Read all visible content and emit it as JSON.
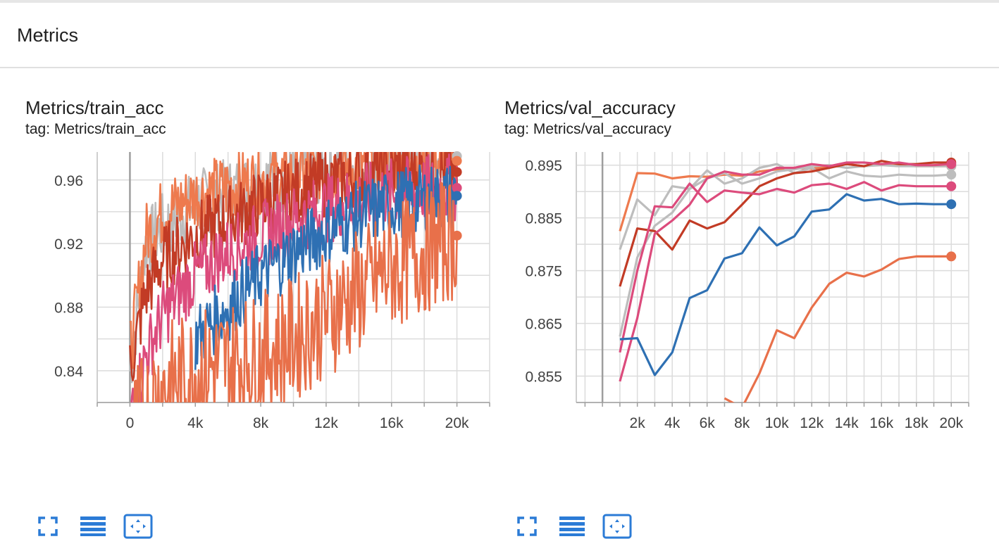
{
  "section": {
    "title": "Metrics"
  },
  "colors": {
    "grid": "#dcdcdc",
    "accent": "#1976d2",
    "series": {
      "gray": "#bdbdbd",
      "orange": "#ee7a4e",
      "red": "#c23b25",
      "pink": "#dc4b7c",
      "blue": "#2e70b3",
      "dark_orange": "#e8704a"
    }
  },
  "charts": [
    {
      "title": "Metrics/train_acc",
      "tag": "tag: Metrics/train_acc",
      "toolbar": [
        {
          "icon": "fullscreen-icon"
        },
        {
          "icon": "data-lines-icon"
        },
        {
          "icon": "fit-domain-icon"
        }
      ]
    },
    {
      "title": "Metrics/val_accuracy",
      "tag": "tag: Metrics/val_accuracy",
      "toolbar": [
        {
          "icon": "fullscreen-icon"
        },
        {
          "icon": "data-lines-icon"
        },
        {
          "icon": "fit-domain-icon"
        }
      ]
    }
  ],
  "chart_data": [
    {
      "type": "line",
      "title": "Metrics/train_acc",
      "subtitle": "tag: Metrics/train_acc",
      "xlim": [
        -2000,
        22000
      ],
      "ylim": [
        0.82,
        0.9776
      ],
      "x_ticks": [
        0,
        4000,
        8000,
        12000,
        16000,
        20000
      ],
      "x_tick_labels": [
        "0",
        "4k",
        "8k",
        "12k",
        "16k",
        "20k"
      ],
      "y_ticks": [
        0.84,
        0.88,
        0.92,
        0.96
      ],
      "y_tick_labels": [
        "0.84",
        "0.88",
        "0.92",
        "0.96"
      ],
      "grid": true,
      "noisy_series": true,
      "series": [
        {
          "color": "#bdbdbd",
          "x": [
            0,
            1000,
            2000,
            4000,
            6000,
            8000,
            10000,
            12000,
            14000,
            16000,
            18000,
            20000
          ],
          "values": [
            0.84,
            0.92,
            0.93,
            0.945,
            0.952,
            0.958,
            0.963,
            0.966,
            0.969,
            0.971,
            0.973,
            0.975
          ]
        },
        {
          "color": "#ee7a4e",
          "x": [
            0,
            1000,
            2000,
            4000,
            6000,
            8000,
            10000,
            12000,
            14000,
            16000,
            18000,
            20000
          ],
          "values": [
            0.85,
            0.925,
            0.94,
            0.95,
            0.955,
            0.96,
            0.963,
            0.966,
            0.968,
            0.97,
            0.971,
            0.972
          ]
        },
        {
          "color": "#c23b25",
          "x": [
            0,
            1000,
            2000,
            4000,
            6000,
            8000,
            10000,
            12000,
            14000,
            16000,
            18000,
            20000
          ],
          "values": [
            0.84,
            0.89,
            0.91,
            0.925,
            0.935,
            0.945,
            0.952,
            0.958,
            0.962,
            0.965,
            0.966,
            0.965
          ]
        },
        {
          "color": "#dc4b7c",
          "x": [
            0,
            1000,
            2000,
            4000,
            6000,
            8000,
            10000,
            12000,
            14000,
            16000,
            18000,
            20000
          ],
          "values": [
            0.81,
            0.85,
            0.875,
            0.9,
            0.915,
            0.925,
            0.935,
            0.942,
            0.948,
            0.952,
            0.954,
            0.955
          ]
        },
        {
          "color": "#2e70b3",
          "x": [
            4000,
            6000,
            8000,
            10000,
            12000,
            14000,
            16000,
            18000,
            20000
          ],
          "values": [
            0.86,
            0.88,
            0.9,
            0.915,
            0.928,
            0.938,
            0.945,
            0.948,
            0.95
          ]
        },
        {
          "color": "#e8704a",
          "x": [
            0,
            2000,
            4000,
            6000,
            8000,
            10000,
            12000,
            14000,
            16000,
            18000,
            20000
          ],
          "values": [
            0.8,
            0.83,
            0.84,
            0.845,
            0.85,
            0.86,
            0.875,
            0.89,
            0.905,
            0.915,
            0.925
          ]
        }
      ]
    },
    {
      "type": "line",
      "title": "Metrics/val_accuracy",
      "subtitle": "tag: Metrics/val_accuracy",
      "xlim": [
        -1500,
        21000
      ],
      "ylim": [
        0.85,
        0.8975
      ],
      "x_ticks": [
        2000,
        4000,
        6000,
        8000,
        10000,
        12000,
        14000,
        16000,
        18000,
        20000
      ],
      "x_tick_labels": [
        "2k",
        "4k",
        "6k",
        "8k",
        "10k",
        "12k",
        "14k",
        "16k",
        "18k",
        "20k"
      ],
      "y_ticks": [
        0.855,
        0.865,
        0.875,
        0.885,
        0.895
      ],
      "y_tick_labels": [
        "0.855",
        "0.865",
        "0.875",
        "0.885",
        "0.895"
      ],
      "grid": true,
      "series": [
        {
          "color": "#ee7a4e",
          "x": [
            1000,
            2000,
            3000,
            4000,
            5000,
            6000,
            7000,
            8000,
            9000,
            10000,
            11000,
            12000,
            13000,
            14000,
            15000,
            16000,
            17000,
            18000,
            19000,
            20000
          ],
          "values": [
            0.8825,
            0.8935,
            0.8934,
            0.8925,
            0.8929,
            0.8928,
            0.8932,
            0.893,
            0.8938,
            0.8942,
            0.8945,
            0.8943,
            0.8948,
            0.8952,
            0.8948,
            0.8952,
            0.895,
            0.8948,
            0.8948,
            0.8948
          ]
        },
        {
          "color": "#bdbdbd",
          "x": [
            1000,
            2000,
            3000,
            4000,
            5000,
            6000,
            7000,
            8000,
            9000,
            10000,
            11000,
            12000,
            13000,
            14000,
            15000,
            16000,
            17000,
            18000,
            19000,
            20000
          ],
          "values": [
            0.879,
            0.8885,
            0.8855,
            0.891,
            0.8905,
            0.894,
            0.8915,
            0.8925,
            0.8945,
            0.8952,
            0.8935,
            0.8945,
            0.8925,
            0.8938,
            0.893,
            0.8928,
            0.8932,
            0.893,
            0.893,
            0.8932
          ]
        },
        {
          "color": "#bdbdbd",
          "x": [
            1000,
            2000,
            3000,
            4000,
            5000,
            6000,
            7000,
            8000,
            9000,
            10000,
            11000,
            12000,
            13000,
            14000,
            15000,
            16000,
            17000,
            18000,
            19000,
            20000
          ],
          "values": [
            0.8625,
            0.8775,
            0.8835,
            0.886,
            0.8905,
            0.8925,
            0.8935,
            0.8915,
            0.8925,
            0.8938,
            0.8942,
            0.8948,
            0.895,
            0.8945,
            0.8948,
            0.895,
            0.8948,
            0.8948,
            0.8948,
            0.8948
          ]
        },
        {
          "color": "#c23b25",
          "x": [
            1000,
            2000,
            3000,
            4000,
            5000,
            6000,
            7000,
            8000,
            9000,
            10000,
            11000,
            12000,
            13000,
            14000,
            15000,
            16000,
            17000,
            18000,
            19000,
            20000
          ],
          "values": [
            0.872,
            0.883,
            0.8825,
            0.879,
            0.8845,
            0.883,
            0.8842,
            0.8875,
            0.891,
            0.8925,
            0.8935,
            0.8938,
            0.8945,
            0.8952,
            0.8948,
            0.8958,
            0.8952,
            0.8952,
            0.8955,
            0.8955
          ]
        },
        {
          "color": "#dc4b7c",
          "x": [
            1000,
            2000,
            3000,
            4000,
            5000,
            6000,
            7000,
            8000,
            9000,
            10000,
            11000,
            12000,
            13000,
            14000,
            15000,
            16000,
            17000,
            18000,
            19000,
            20000
          ],
          "values": [
            0.8595,
            0.875,
            0.8872,
            0.887,
            0.8915,
            0.888,
            0.8902,
            0.8898,
            0.8895,
            0.8905,
            0.8898,
            0.8912,
            0.8915,
            0.8905,
            0.8918,
            0.8902,
            0.8912,
            0.891,
            0.891,
            0.891
          ]
        },
        {
          "color": "#dc4b7c",
          "x": [
            1000,
            2000,
            3000,
            4000,
            5000,
            6000,
            7000,
            8000,
            9000,
            10000,
            11000,
            12000,
            13000,
            14000,
            15000,
            16000,
            17000,
            18000,
            19000,
            20000
          ],
          "values": [
            0.854,
            0.866,
            0.882,
            0.8845,
            0.8875,
            0.8925,
            0.8938,
            0.8932,
            0.8932,
            0.8945,
            0.8945,
            0.8952,
            0.8948,
            0.8955,
            0.8955,
            0.8952,
            0.8955,
            0.895,
            0.895,
            0.8952
          ]
        },
        {
          "color": "#2e70b3",
          "x": [
            1000,
            2000,
            3000,
            4000,
            5000,
            6000,
            7000,
            8000,
            9000,
            10000,
            11000,
            12000,
            13000,
            14000,
            15000,
            16000,
            17000,
            18000,
            19000,
            20000
          ],
          "values": [
            0.862,
            0.8622,
            0.8552,
            0.8595,
            0.8698,
            0.8713,
            0.8773,
            0.8783,
            0.8832,
            0.8798,
            0.8815,
            0.8862,
            0.8866,
            0.8895,
            0.8883,
            0.8886,
            0.8876,
            0.8877,
            0.8876,
            0.8876
          ]
        },
        {
          "color": "#e8704a",
          "x": [
            7000,
            8000,
            9000,
            10000,
            11000,
            12000,
            13000,
            14000,
            15000,
            16000,
            17000,
            18000,
            19000,
            20000
          ],
          "values": [
            0.8508,
            0.849,
            0.8555,
            0.8637,
            0.8622,
            0.868,
            0.8725,
            0.8746,
            0.8739,
            0.8752,
            0.8772,
            0.8777,
            0.8777,
            0.8777
          ]
        }
      ]
    }
  ]
}
